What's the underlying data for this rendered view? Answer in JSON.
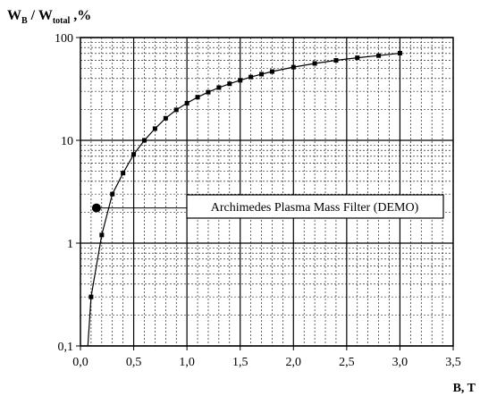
{
  "chart_data": {
    "type": "line",
    "ylabel": {
      "main1": "W",
      "sub1": "B",
      "mid": " / W",
      "sub2": "total",
      "tail": " ,%"
    },
    "xlabel": "B, T",
    "xlim": [
      0,
      3.5
    ],
    "ylim": [
      0.1,
      100
    ],
    "y_scale": "log",
    "x_ticks": [
      "0,0",
      "0,5",
      "1,0",
      "1,5",
      "2,0",
      "2,5",
      "3,0",
      "3,5"
    ],
    "y_ticks": [
      {
        "value": 0.1,
        "label": "0,1"
      },
      {
        "value": 1,
        "label": "1"
      },
      {
        "value": 10,
        "label": "10"
      },
      {
        "value": 100,
        "label": "100"
      }
    ],
    "grid": true,
    "series": [
      {
        "x": [
          0.07,
          0.1,
          0.2,
          0.3,
          0.4,
          0.5,
          0.6,
          0.7,
          0.8,
          0.9,
          1.0,
          1.1,
          1.2,
          1.3,
          1.4,
          1.5,
          1.6,
          1.7,
          1.8,
          2.0,
          2.2,
          2.4,
          2.6,
          2.8,
          3.0
        ],
        "y": [
          0.1,
          0.3,
          1.2,
          3.0,
          4.8,
          7.3,
          10.0,
          13.0,
          16.4,
          19.8,
          23.0,
          26.3,
          29.4,
          32.6,
          35.5,
          38.4,
          41.3,
          44.0,
          46.7,
          51.5,
          56.0,
          60.0,
          63.6,
          66.7,
          70.5
        ],
        "marker": "square",
        "color": "#000000"
      }
    ],
    "annotations": [
      {
        "text": "Archimedes Plasma Mass Filter (DEMO)",
        "point": {
          "x": 0.15,
          "y": 2.2
        }
      }
    ]
  }
}
